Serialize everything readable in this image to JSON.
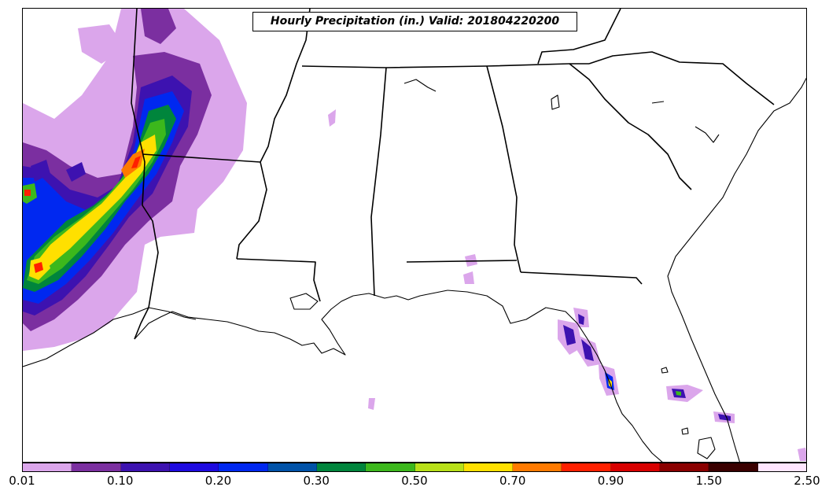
{
  "title": "Hourly Precipitation (in.) Valid: 201804220200",
  "colorbar": {
    "colors": [
      "#dba6eb",
      "#7b2fa0",
      "#3d12b0",
      "#1e0ae0",
      "#0028f0",
      "#0052a8",
      "#00853c",
      "#3cb81c",
      "#b8e018",
      "#ffe000",
      "#ff7a00",
      "#ff2000",
      "#d80000",
      "#8a0000",
      "#3a0000",
      "#ffe6ff"
    ],
    "tick_labels": [
      "0.01",
      "0.10",
      "0.20",
      "0.30",
      "0.50",
      "0.70",
      "0.90",
      "1.50",
      "2.50"
    ]
  }
}
